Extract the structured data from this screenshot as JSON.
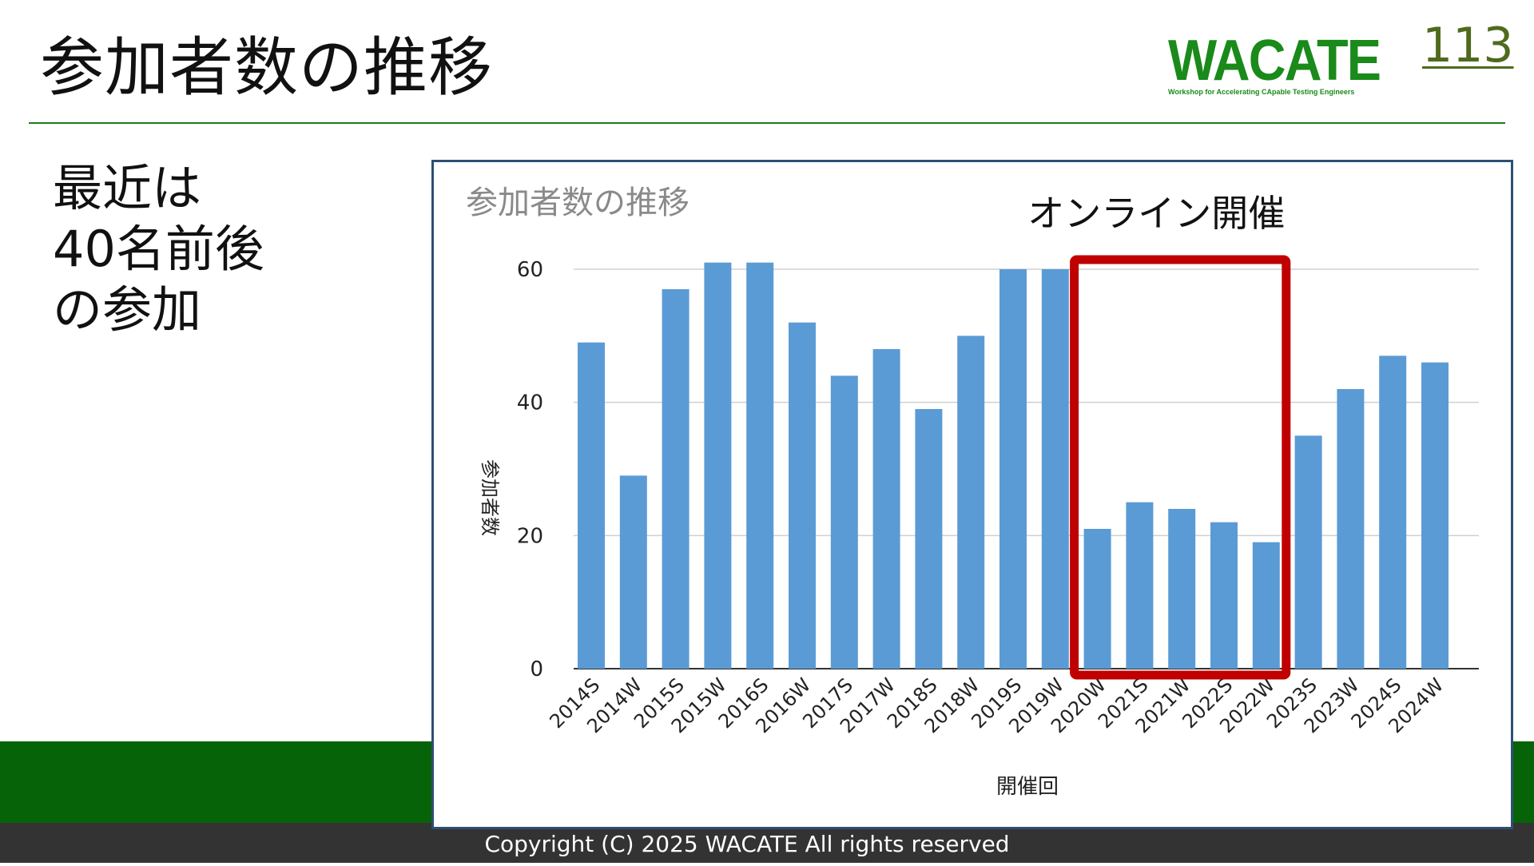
{
  "slide": {
    "title": "参加者数の推移",
    "page_number": "113",
    "note_lines": [
      "最近は",
      "40名前後",
      "の参加"
    ],
    "copyright": "Copyright (C) 2025 WACATE All rights reserved"
  },
  "logo": {
    "word": "WACATE",
    "tagline": "Workshop for Accelerating CApable Testing Engineers"
  },
  "colors": {
    "bar": "#5b9bd5",
    "highlight_box": "#c00000",
    "brand_green": "#076307",
    "title_rule": "#1f7a1f",
    "chart_frame": "#2d4f74",
    "gridline": "#d0d0d0"
  },
  "annotation": {
    "label": "オンライン開催",
    "from_category": "2020W",
    "to_category": "2022W"
  },
  "chart_data": {
    "type": "bar",
    "title": "参加者数の推移",
    "xlabel": "開催回",
    "ylabel": "参加者数",
    "ylim": [
      0,
      60
    ],
    "yticks": [
      0,
      20,
      40,
      60
    ],
    "grid": true,
    "legend": "none",
    "categories": [
      "2014S",
      "2014W",
      "2015S",
      "2015W",
      "2016S",
      "2016W",
      "2017S",
      "2017W",
      "2018S",
      "2018W",
      "2019S",
      "2019W",
      "2020W",
      "2021S",
      "2021W",
      "2022S",
      "2022W",
      "2023S",
      "2023W",
      "2024S",
      "2024W"
    ],
    "values": [
      49,
      29,
      57,
      61,
      61,
      52,
      44,
      48,
      39,
      50,
      60,
      60,
      21,
      25,
      24,
      22,
      19,
      35,
      42,
      47,
      46
    ]
  }
}
